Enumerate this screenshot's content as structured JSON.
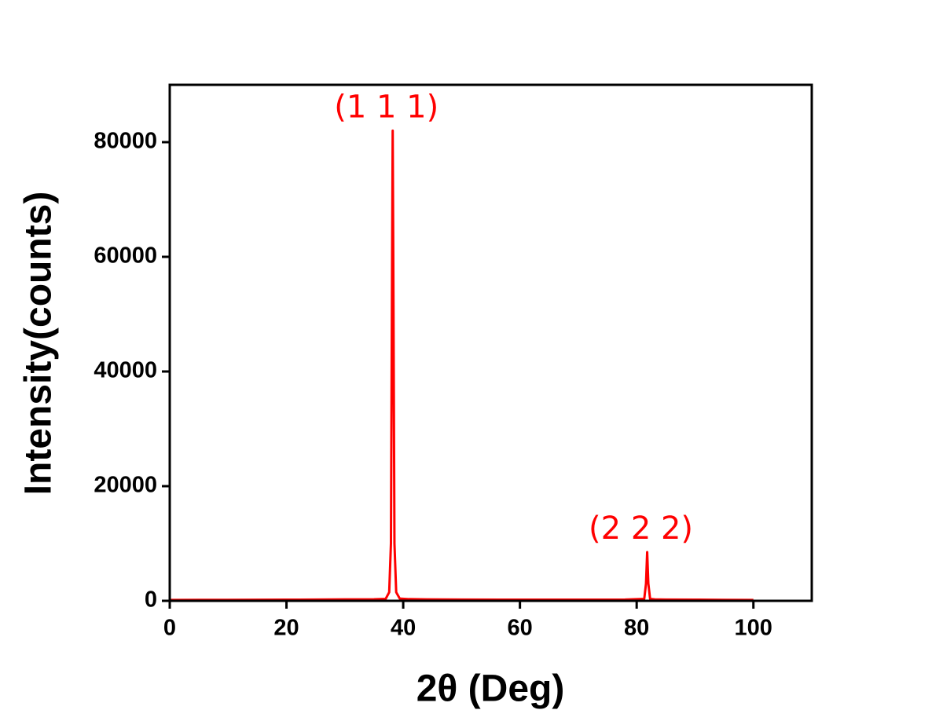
{
  "chart_data": {
    "type": "line",
    "xlabel": "2θ (Deg)",
    "ylabel": "Intensity(counts)",
    "x": [
      0,
      10,
      20,
      30,
      35,
      37,
      37.6,
      37.9,
      38.1,
      38.2,
      38.3,
      38.5,
      38.8,
      39.4,
      41,
      44,
      50,
      60,
      70,
      78,
      81.3,
      81.6,
      81.8,
      82.0,
      82.3,
      83.1,
      85,
      90,
      95,
      100
    ],
    "values": [
      150,
      180,
      200,
      250,
      280,
      350,
      1500,
      10000,
      60000,
      82000,
      60000,
      10000,
      1500,
      400,
      300,
      250,
      220,
      200,
      200,
      220,
      350,
      3000,
      8500,
      3000,
      350,
      250,
      220,
      200,
      180,
      160
    ],
    "color": "#ff0000",
    "xlim": [
      0,
      110
    ],
    "xticks": [
      0,
      20,
      40,
      60,
      80,
      100
    ],
    "ylim": [
      0,
      90000
    ],
    "yticks": [
      0,
      20000,
      40000,
      60000,
      80000
    ],
    "annotations": [
      {
        "text": "(1 1 1)",
        "x": 38.2,
        "y": 82000
      },
      {
        "text": "(2 2 2)",
        "x": 81.8,
        "y": 8500
      }
    ]
  }
}
